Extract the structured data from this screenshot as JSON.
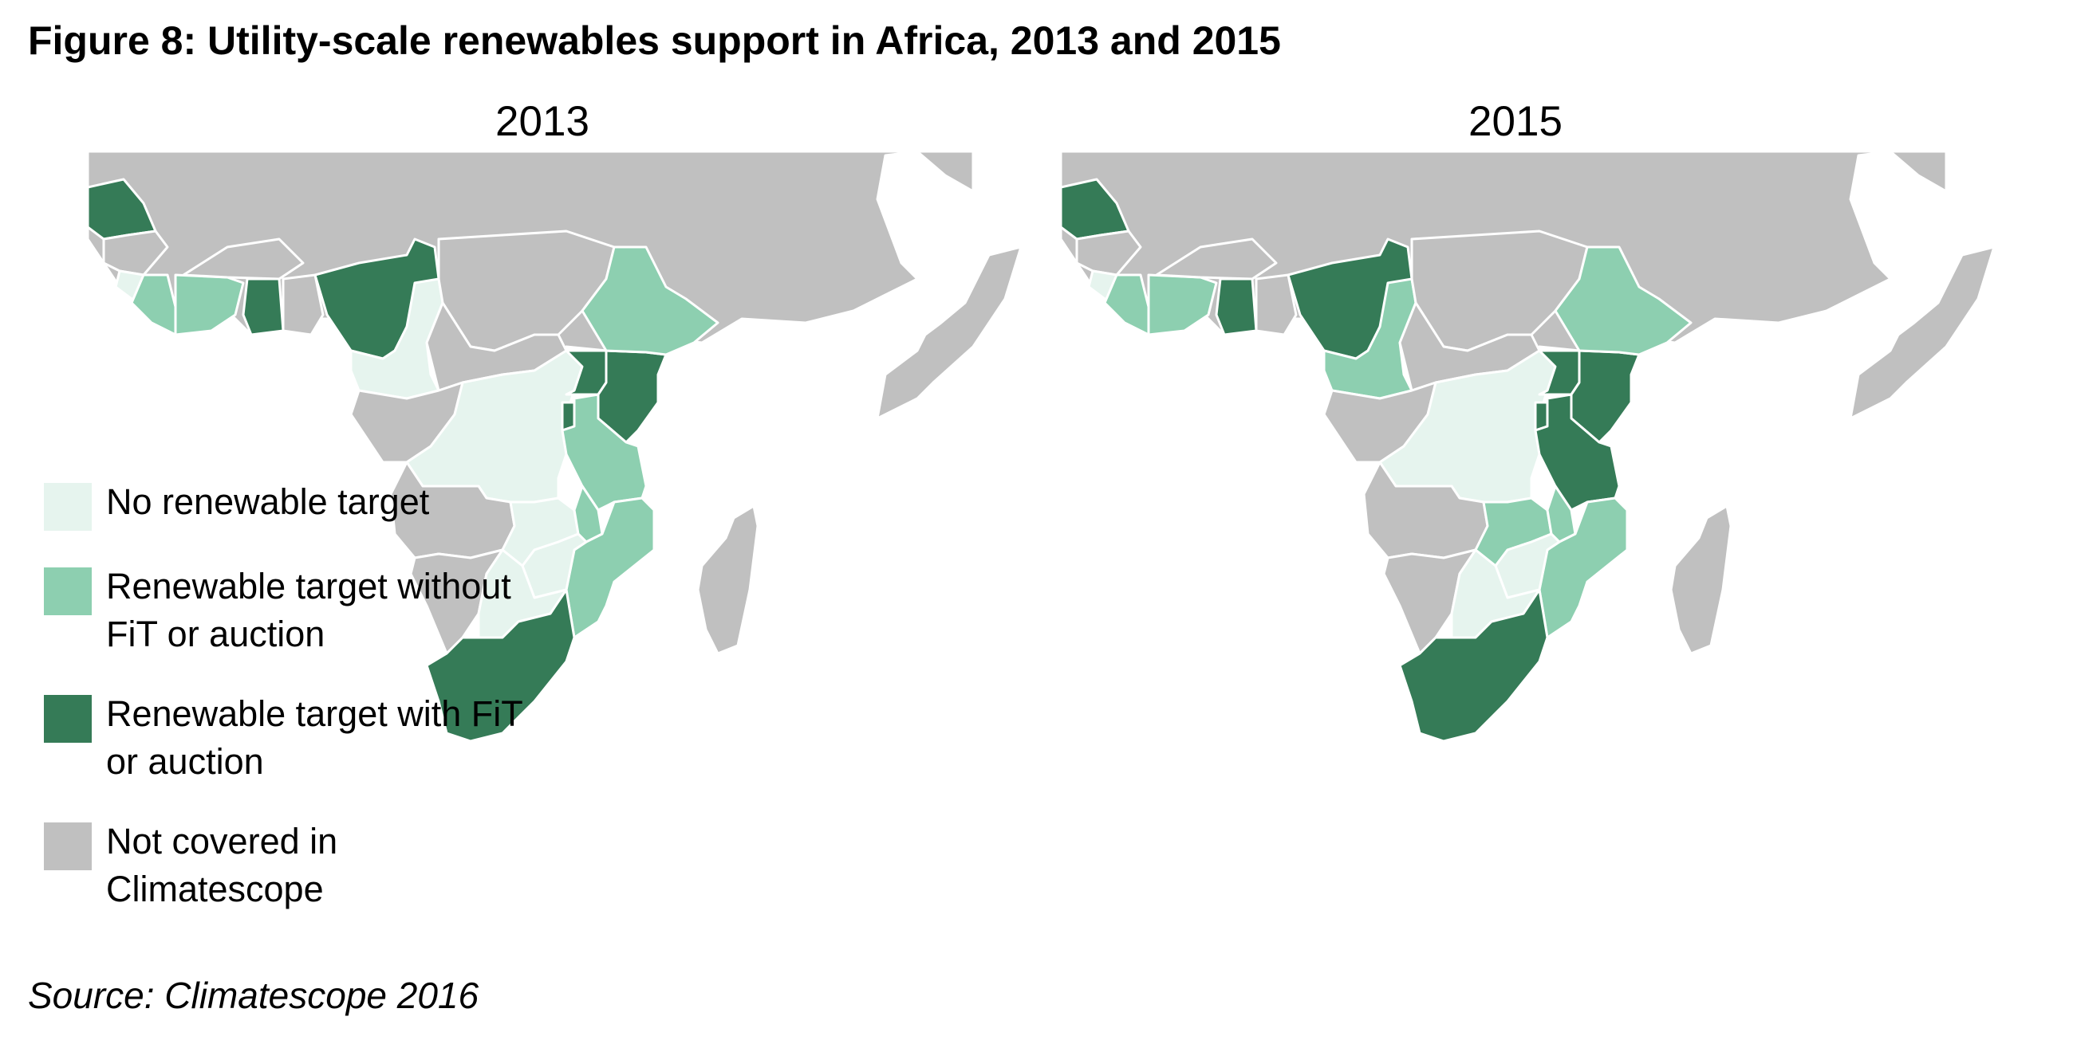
{
  "title": "Figure 8: Utility-scale renewables support in Africa, 2013 and 2015",
  "source": "Source: Climatescope 2016",
  "colors": {
    "no_target": "#e6f4ee",
    "target_no_fit": "#8dcfb0",
    "target_fit": "#357b57",
    "not_covered": "#c0c0c0"
  },
  "legend": [
    {
      "key": "no_target",
      "label": "No renewable target"
    },
    {
      "key": "target_no_fit",
      "label": "Renewable target without FiT or auction"
    },
    {
      "key": "target_fit",
      "label": "Renewable target with FiT or auction"
    },
    {
      "key": "not_covered",
      "label": "Not covered in Climatescope"
    }
  ],
  "maps": [
    {
      "year": "2013",
      "status": {
        "Senegal": "target_fit",
        "Sierra Leone": "no_target",
        "Liberia": "target_no_fit",
        "Cote d'Ivoire": "target_no_fit",
        "Ghana": "target_fit",
        "Nigeria": "target_fit",
        "Cameroon": "no_target",
        "DR Congo": "no_target",
        "Uganda": "target_fit",
        "Kenya": "target_fit",
        "Rwanda": "target_fit",
        "Ethiopia": "target_no_fit",
        "Tanzania": "target_no_fit",
        "Malawi": "target_no_fit",
        "Mozambique": "target_no_fit",
        "Zambia": "no_target",
        "Zimbabwe": "no_target",
        "Botswana": "no_target",
        "South Africa": "target_fit"
      }
    },
    {
      "year": "2015",
      "status": {
        "Senegal": "target_fit",
        "Sierra Leone": "no_target",
        "Liberia": "target_no_fit",
        "Cote d'Ivoire": "target_no_fit",
        "Ghana": "target_fit",
        "Nigeria": "target_fit",
        "Cameroon": "target_no_fit",
        "DR Congo": "no_target",
        "Uganda": "target_fit",
        "Kenya": "target_fit",
        "Rwanda": "target_fit",
        "Ethiopia": "target_no_fit",
        "Tanzania": "target_fit",
        "Malawi": "target_no_fit",
        "Mozambique": "target_no_fit",
        "Zambia": "target_no_fit",
        "Zimbabwe": "no_target",
        "Botswana": "no_target",
        "South Africa": "target_fit"
      }
    }
  ]
}
